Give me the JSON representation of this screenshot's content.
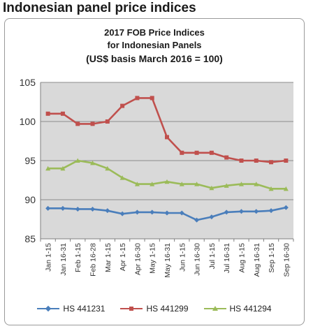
{
  "page": {
    "heading": "Indonesian panel price indices"
  },
  "chart_data": {
    "type": "line",
    "title_lines": [
      "2017 FOB Price Indices",
      "for Indonesian Panels",
      "(US$ basis March 2016 = 100)"
    ],
    "xlabel": "",
    "ylabel": "",
    "ylim": [
      85,
      105
    ],
    "yticks": [
      85,
      90,
      95,
      100,
      105
    ],
    "grid": true,
    "plot_background": "#d9d9d9",
    "legend_position": "bottom",
    "categories": [
      "Jan 1-15",
      "Jan 16-31",
      "Feb 1-15",
      "Feb 16-28",
      "Mar 1-15",
      "Apr 1-15",
      "Apr 16-30",
      "May 1-15",
      "May 16-31",
      "Jun 1-15",
      "Jun 16-30",
      "Jul 1-15",
      "Jul 16-31",
      "Aug 1-15",
      "Aug 16-31",
      "Sep 1-15",
      "Sep 16-30"
    ],
    "series": [
      {
        "name": "HS 441231",
        "color": "#4a7ebb",
        "marker": "diamond",
        "values": [
          88.9,
          88.9,
          88.8,
          88.8,
          88.6,
          88.2,
          88.4,
          88.4,
          88.3,
          88.3,
          87.4,
          87.8,
          88.4,
          88.5,
          88.5,
          88.6,
          89.0
        ]
      },
      {
        "name": "HS 441299",
        "color": "#c0504d",
        "marker": "square",
        "values": [
          101.0,
          101.0,
          99.7,
          99.7,
          100.0,
          102.0,
          103.0,
          103.0,
          98.0,
          96.0,
          96.0,
          96.0,
          95.4,
          95.0,
          95.0,
          94.8,
          95.0
        ]
      },
      {
        "name": "HS 441294",
        "color": "#9bbb59",
        "marker": "triangle",
        "values": [
          94.0,
          94.0,
          95.0,
          94.7,
          94.0,
          92.8,
          92.0,
          92.0,
          92.3,
          92.0,
          92.0,
          91.5,
          91.8,
          92.0,
          92.0,
          91.4,
          91.4
        ]
      }
    ]
  }
}
